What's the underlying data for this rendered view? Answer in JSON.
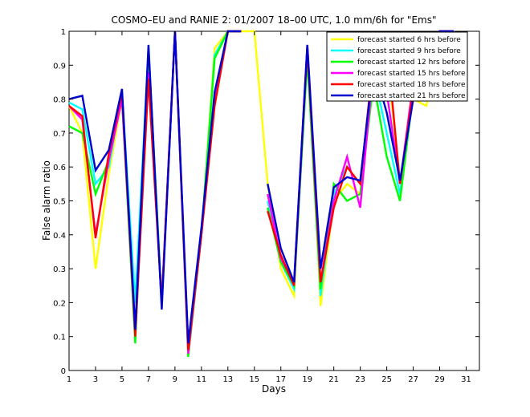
{
  "chart_data": {
    "type": "line",
    "title": "COSMO–EU and RANIE 2: 01/2007 18–00 UTC, 1.0 mm/6h for \"Ems\"",
    "xlabel": "Days",
    "ylabel": "False alarm ratio",
    "xlim": [
      1,
      32
    ],
    "ylim": [
      0,
      1
    ],
    "x_ticks": [
      1,
      3,
      5,
      7,
      9,
      11,
      13,
      15,
      17,
      19,
      21,
      23,
      25,
      27,
      29,
      31
    ],
    "y_ticks": [
      "0",
      "0.1",
      "0.2",
      "0.3",
      "0.4",
      "0.5",
      "0.6",
      "0.7",
      "0.8",
      "0.9",
      "1"
    ],
    "y_tick_values": [
      0,
      0.1,
      0.2,
      0.3,
      0.4,
      0.5,
      0.6,
      0.7,
      0.8,
      0.9,
      1
    ],
    "grid": false,
    "legend_position": "top-right",
    "x": [
      1,
      2,
      3,
      4,
      5,
      6,
      7,
      8,
      9,
      10,
      11,
      12,
      13,
      14,
      15,
      16,
      17,
      18,
      19,
      20,
      21,
      22,
      23,
      24,
      25,
      26,
      27,
      28,
      29,
      30,
      31
    ],
    "series": [
      {
        "name": "forecast started 6 hrs before",
        "color": "#ffff00",
        "values": [
          0.78,
          0.7,
          0.3,
          0.58,
          0.8,
          0.1,
          0.95,
          0.2,
          1.0,
          0.05,
          0.4,
          0.95,
          1.0,
          1.0,
          1.0,
          0.55,
          0.3,
          0.22,
          0.95,
          0.19,
          0.5,
          0.55,
          0.52,
          0.9,
          0.93,
          0.55,
          0.8,
          0.78,
          1.0,
          1.0,
          0.95
        ]
      },
      {
        "name": "forecast started 9 hrs before",
        "color": "#00ffff",
        "values": [
          0.79,
          0.77,
          0.55,
          0.6,
          0.82,
          0.2,
          0.95,
          0.2,
          1.0,
          0.06,
          0.4,
          0.93,
          1.0,
          1.0,
          null,
          0.5,
          0.32,
          0.24,
          0.92,
          0.22,
          0.52,
          0.6,
          0.55,
          0.88,
          0.7,
          0.52,
          0.83,
          0.8,
          1.0,
          1.0,
          0.92
        ]
      },
      {
        "name": "forecast started 12 hrs before",
        "color": "#00ff00",
        "values": [
          0.72,
          0.7,
          0.52,
          0.62,
          0.8,
          0.08,
          0.95,
          0.2,
          1.0,
          0.04,
          0.4,
          0.92,
          1.0,
          1.0,
          null,
          0.48,
          0.32,
          0.25,
          0.92,
          0.24,
          0.55,
          0.5,
          0.52,
          0.85,
          0.63,
          0.5,
          0.82,
          0.8,
          1.0,
          1.0,
          0.97
        ]
      },
      {
        "name": "forecast started 15 hrs before",
        "color": "#ff00ff",
        "values": [
          0.78,
          0.74,
          0.4,
          0.62,
          0.8,
          0.12,
          0.88,
          0.2,
          1.0,
          0.05,
          0.4,
          0.8,
          1.0,
          1.0,
          null,
          0.52,
          0.33,
          0.26,
          0.96,
          0.26,
          0.5,
          0.63,
          0.48,
          0.9,
          0.82,
          0.55,
          0.85,
          0.82,
          1.0,
          1.0,
          0.89
        ]
      },
      {
        "name": "forecast started 18 hrs before",
        "color": "#ff0000",
        "values": [
          0.78,
          0.75,
          0.39,
          0.64,
          0.82,
          0.1,
          0.86,
          0.2,
          1.0,
          0.06,
          0.4,
          0.78,
          1.0,
          1.0,
          null,
          0.47,
          0.34,
          0.25,
          0.95,
          0.26,
          0.48,
          0.6,
          0.55,
          0.92,
          0.97,
          0.55,
          0.83,
          0.81,
          1.0,
          1.0,
          0.93
        ]
      },
      {
        "name": "forecast started 21 hrs before",
        "color": "#0000cc",
        "values": [
          0.8,
          0.81,
          0.59,
          0.65,
          0.83,
          0.12,
          0.96,
          0.18,
          1.0,
          0.08,
          0.42,
          0.82,
          1.0,
          1.0,
          null,
          0.55,
          0.36,
          0.26,
          0.96,
          0.3,
          0.54,
          0.57,
          0.56,
          0.9,
          0.76,
          0.56,
          0.8,
          0.82,
          1.0,
          1.0,
          0.94
        ]
      }
    ]
  }
}
